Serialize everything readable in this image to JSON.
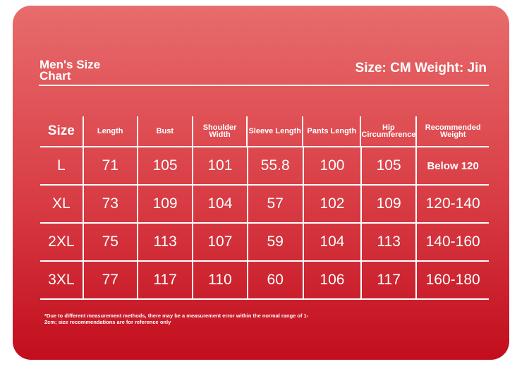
{
  "header": {
    "title": "Men's Size Chart",
    "units": "Size: CM Weight: Jin"
  },
  "table": {
    "columns": [
      "Size",
      "Length",
      "Bust",
      "Shoulder Width",
      "Sleeve Length",
      "Pants Length",
      "Hip Circumference",
      "Recommended Weight"
    ],
    "rows": [
      [
        "L",
        "71",
        "105",
        "101",
        "55.8",
        "100",
        "105",
        "Below 120"
      ],
      [
        "XL",
        "73",
        "109",
        "104",
        "57",
        "102",
        "109",
        "120-140"
      ],
      [
        "2XL",
        "75",
        "113",
        "107",
        "59",
        "104",
        "113",
        "140-160"
      ],
      [
        "3XL",
        "77",
        "117",
        "110",
        "60",
        "106",
        "117",
        "160-180"
      ]
    ]
  },
  "note": "*Due to different measurement methods, there may be a measurement error within the normal range of 1-2cm; size recommendations are for reference only"
}
